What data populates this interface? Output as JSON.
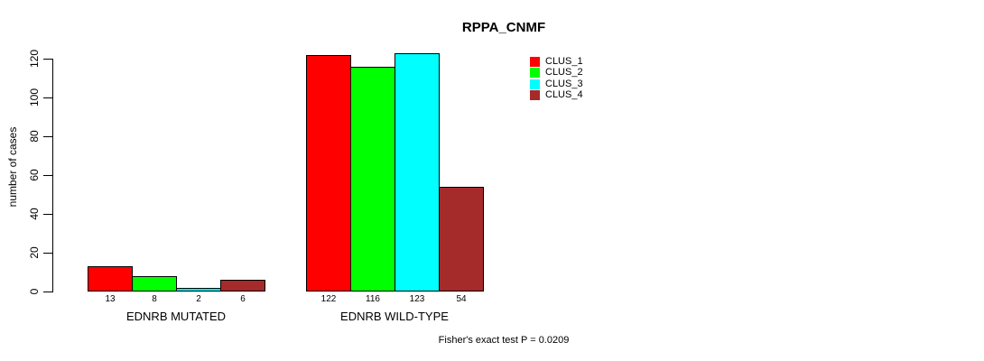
{
  "chart_data": {
    "type": "bar",
    "title": "RPPA_CNMF",
    "ylabel": "number of cases",
    "xlabel": "",
    "ylim": [
      0,
      120
    ],
    "yticks": [
      0,
      20,
      40,
      60,
      80,
      100,
      120
    ],
    "grid": false,
    "legend_position": "top-right",
    "categories": [
      "EDNRB MUTATED",
      "EDNRB WILD-TYPE"
    ],
    "series": [
      {
        "name": "CLUS_1",
        "color": "#ff0000",
        "values": [
          13,
          122
        ]
      },
      {
        "name": "CLUS_2",
        "color": "#00ff00",
        "values": [
          8,
          116
        ]
      },
      {
        "name": "CLUS_3",
        "color": "#00ffff",
        "values": [
          2,
          123
        ]
      },
      {
        "name": "CLUS_4",
        "color": "#a52a2a",
        "values": [
          6,
          54
        ]
      }
    ],
    "bar_value_labels": [
      [
        "13",
        "8",
        "2",
        "6"
      ],
      [
        "122",
        "116",
        "123",
        "54"
      ]
    ],
    "annotation": "Fisher's exact test P = 0.0209",
    "axis_color": "#000000",
    "background_color": "#ffffff"
  }
}
